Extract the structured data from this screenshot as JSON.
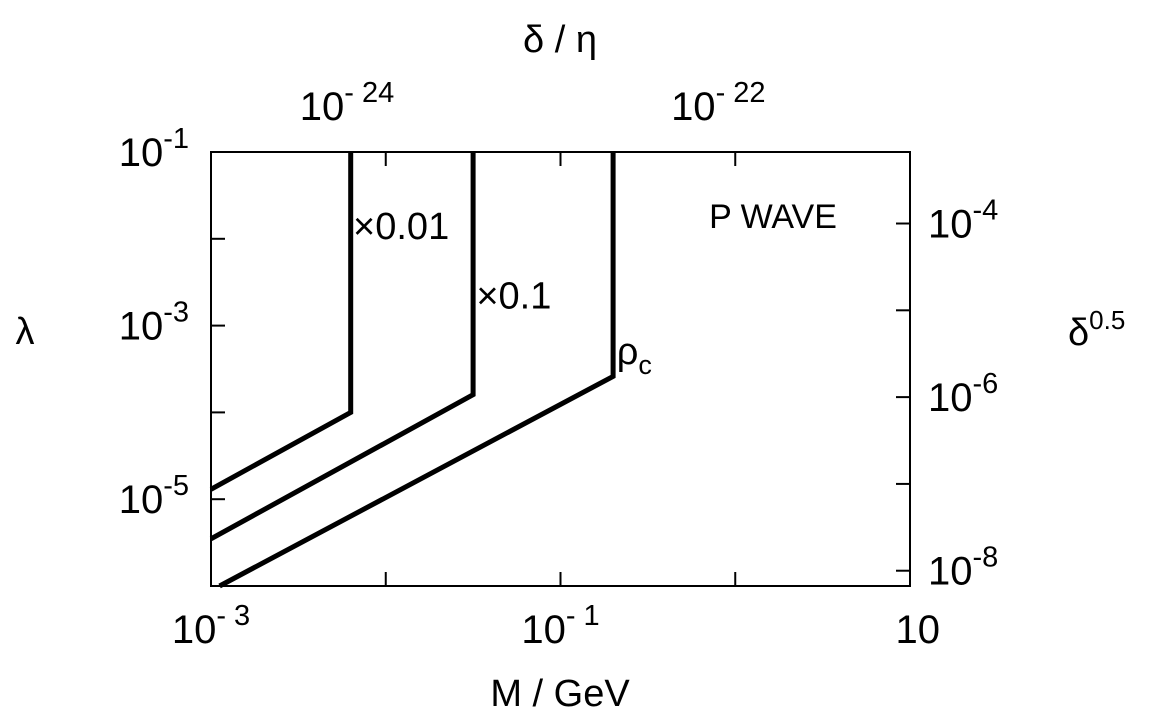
{
  "chart_data": {
    "type": "line",
    "title": "",
    "annotation": "P WAVE",
    "xlabel": "M / GeV",
    "ylabel": "λ",
    "x2label": "δ / η",
    "y2label": "δ^0.5",
    "xscale": "log",
    "yscale": "log",
    "xlim": [
      0.001,
      10
    ],
    "ylim": [
      1e-06,
      0.1
    ],
    "x_ticks": [
      {
        "base": "10",
        "exp": "- 3",
        "value": 0.001
      },
      {
        "base": "10",
        "exp": "- 1",
        "value": 0.1
      },
      {
        "base": "10",
        "exp": "",
        "value": 10
      }
    ],
    "y_ticks": [
      {
        "base": "10",
        "exp": "-5",
        "value": 1e-05
      },
      {
        "base": "10",
        "exp": "-3",
        "value": 0.001
      },
      {
        "base": "10",
        "exp": "-1",
        "value": 0.1
      }
    ],
    "x2_ticks": [
      {
        "base": "10",
        "exp": "- 24",
        "value": 0.006
      },
      {
        "base": "10",
        "exp": "- 22",
        "value": 0.8
      }
    ],
    "y2_ticks": [
      {
        "base": "10",
        "exp": "-8",
        "value": 1.5e-06
      },
      {
        "base": "10",
        "exp": "-6",
        "value": 0.00015
      },
      {
        "base": "10",
        "exp": "-4",
        "value": 0.015
      }
    ],
    "series": [
      {
        "name": "×0.01",
        "x": [
          0.001,
          0.0063,
          0.0063
        ],
        "y": [
          1.3e-05,
          0.0001,
          0.1
        ]
      },
      {
        "name": "×0.1",
        "x": [
          0.001,
          0.0316,
          0.0316
        ],
        "y": [
          3.5e-06,
          0.00016,
          0.1
        ]
      },
      {
        "name": "ρ_c",
        "x": [
          0.00112,
          0.2,
          0.2
        ],
        "y": [
          1e-06,
          0.00026,
          0.1
        ]
      }
    ],
    "series_labels": [
      {
        "main": "×0.01",
        "sub": "",
        "x": 0.0065,
        "y": 0.01
      },
      {
        "main": "×0.1",
        "sub": "",
        "x": 0.033,
        "y": 0.00158
      },
      {
        "main": "ρ",
        "sub": "c",
        "x": 0.21,
        "y": 0.00036
      }
    ],
    "grid": false,
    "legend": "none"
  }
}
